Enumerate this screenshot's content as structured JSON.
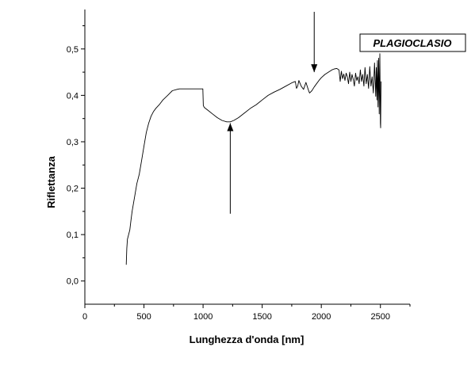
{
  "chart_data": {
    "type": "line",
    "xlabel": "Lunghezza d'onda [nm]",
    "ylabel": "Riflettanza",
    "legend": "PLAGIOCLASIO",
    "legend_position": "top-right",
    "xlim": [
      0,
      2750
    ],
    "ylim": [
      -0.05,
      0.585
    ],
    "x_ticks": [
      0,
      500,
      1000,
      1500,
      2000,
      2500
    ],
    "x_tick_labels": [
      "0",
      "500",
      "1000",
      "1500",
      "2000",
      "2500"
    ],
    "y_ticks": [
      0.0,
      0.1,
      0.2,
      0.3,
      0.4,
      0.5
    ],
    "y_tick_labels": [
      "0,0",
      "0,1",
      "0,2",
      "0,3",
      "0,4",
      "0,5"
    ],
    "grid": false,
    "series": [
      {
        "x": [
          350,
          355,
          360,
          370,
          380,
          390,
          400,
          420,
          440,
          460,
          480,
          500,
          520,
          540,
          560,
          580,
          600,
          630,
          660,
          700,
          740,
          780,
          800,
          820,
          860,
          900,
          950,
          998,
          1002,
          1010,
          1040,
          1080,
          1120,
          1160,
          1200,
          1230,
          1260,
          1300,
          1350,
          1400,
          1450,
          1500,
          1550,
          1600,
          1650,
          1700,
          1750,
          1780,
          1790,
          1800,
          1810,
          1830,
          1850,
          1870,
          1890,
          1900,
          1920,
          1940,
          1960,
          1980,
          2000,
          2030,
          2060,
          2090,
          2110,
          2130,
          2150,
          2160,
          2170,
          2180,
          2190,
          2200,
          2210,
          2220,
          2230,
          2240,
          2250,
          2260,
          2270,
          2280,
          2290,
          2300,
          2310,
          2320,
          2330,
          2340,
          2350,
          2360,
          2370,
          2380,
          2390,
          2400,
          2410,
          2420,
          2430,
          2440,
          2450,
          2460,
          2465,
          2470,
          2475,
          2480,
          2485,
          2490,
          2495,
          2500,
          2502,
          2505
        ],
        "y": [
          0.035,
          0.07,
          0.09,
          0.1,
          0.11,
          0.13,
          0.15,
          0.18,
          0.21,
          0.23,
          0.26,
          0.29,
          0.32,
          0.34,
          0.355,
          0.365,
          0.372,
          0.38,
          0.39,
          0.4,
          0.41,
          0.413,
          0.414,
          0.414,
          0.414,
          0.414,
          0.414,
          0.414,
          0.378,
          0.374,
          0.368,
          0.36,
          0.352,
          0.346,
          0.343,
          0.343,
          0.346,
          0.352,
          0.362,
          0.372,
          0.38,
          0.39,
          0.4,
          0.407,
          0.413,
          0.42,
          0.427,
          0.43,
          0.415,
          0.42,
          0.432,
          0.42,
          0.413,
          0.428,
          0.412,
          0.405,
          0.41,
          0.418,
          0.425,
          0.432,
          0.438,
          0.445,
          0.45,
          0.455,
          0.457,
          0.458,
          0.455,
          0.43,
          0.452,
          0.436,
          0.446,
          0.432,
          0.448,
          0.44,
          0.425,
          0.45,
          0.43,
          0.445,
          0.435,
          0.42,
          0.448,
          0.432,
          0.44,
          0.425,
          0.455,
          0.43,
          0.445,
          0.42,
          0.46,
          0.425,
          0.445,
          0.415,
          0.462,
          0.42,
          0.44,
          0.405,
          0.47,
          0.398,
          0.46,
          0.39,
          0.475,
          0.375,
          0.48,
          0.36,
          0.49,
          0.34,
          0.33,
          0.43
        ]
      }
    ],
    "annotations": [
      {
        "type": "arrow",
        "direction": "down",
        "x": 1940,
        "from_y": 0.58,
        "to_y": 0.45
      },
      {
        "type": "arrow",
        "direction": "up",
        "x": 1230,
        "from_y": 0.145,
        "to_y": 0.34
      }
    ]
  }
}
